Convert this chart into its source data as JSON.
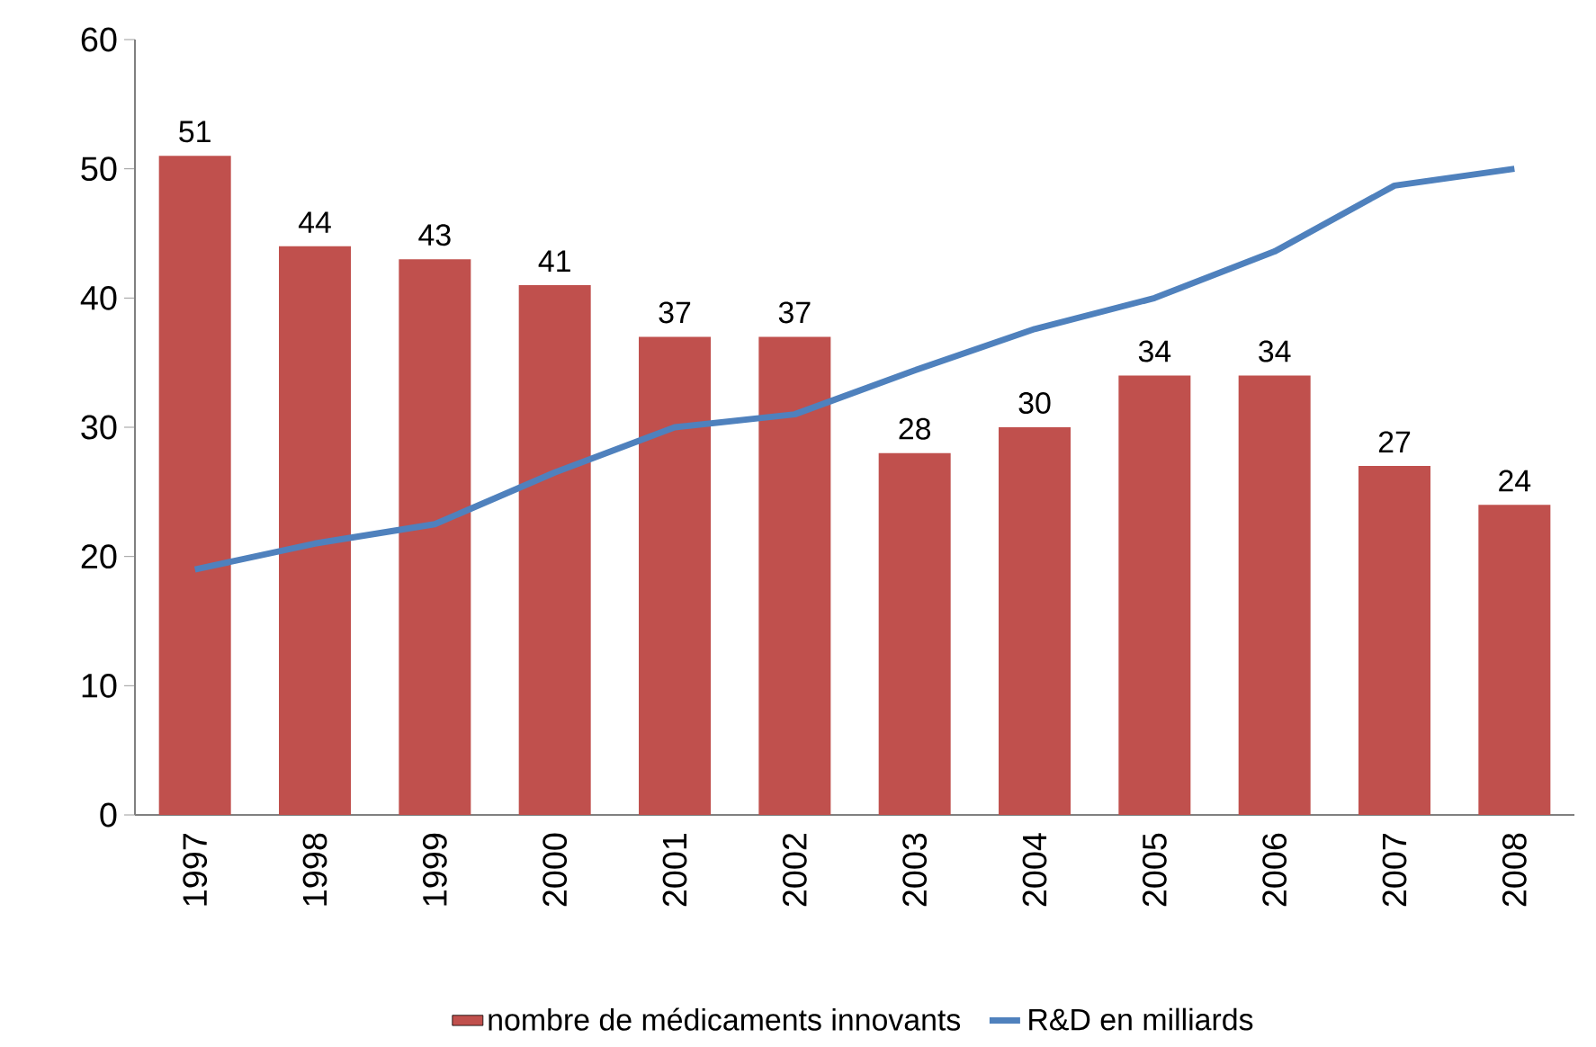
{
  "chart_data": {
    "type": "bar",
    "categories": [
      "1997",
      "1998",
      "1999",
      "2000",
      "2001",
      "2002",
      "2003",
      "2004",
      "2005",
      "2006",
      "2007",
      "2008"
    ],
    "series": [
      {
        "name": "nombre de médicaments innovants",
        "color": "#c0504d",
        "values": [
          51,
          44,
          43,
          41,
          37,
          37,
          28,
          30,
          34,
          34,
          27,
          24
        ],
        "value_labels": [
          "51",
          "44",
          "43",
          "41",
          "37",
          "37",
          "28",
          "30",
          "34",
          "34",
          "27",
          "24"
        ]
      },
      {
        "name": "R&D en milliards",
        "type": "line",
        "color": "#4f81bd",
        "values": [
          19,
          21,
          22.5,
          26.5,
          30,
          31,
          34.4,
          37.6,
          40,
          43.6,
          48.7,
          50
        ]
      }
    ],
    "ylim": [
      0,
      60
    ],
    "yticks": [
      0,
      10,
      20,
      30,
      40,
      50,
      60
    ],
    "legend": "bottom",
    "grid": false
  }
}
